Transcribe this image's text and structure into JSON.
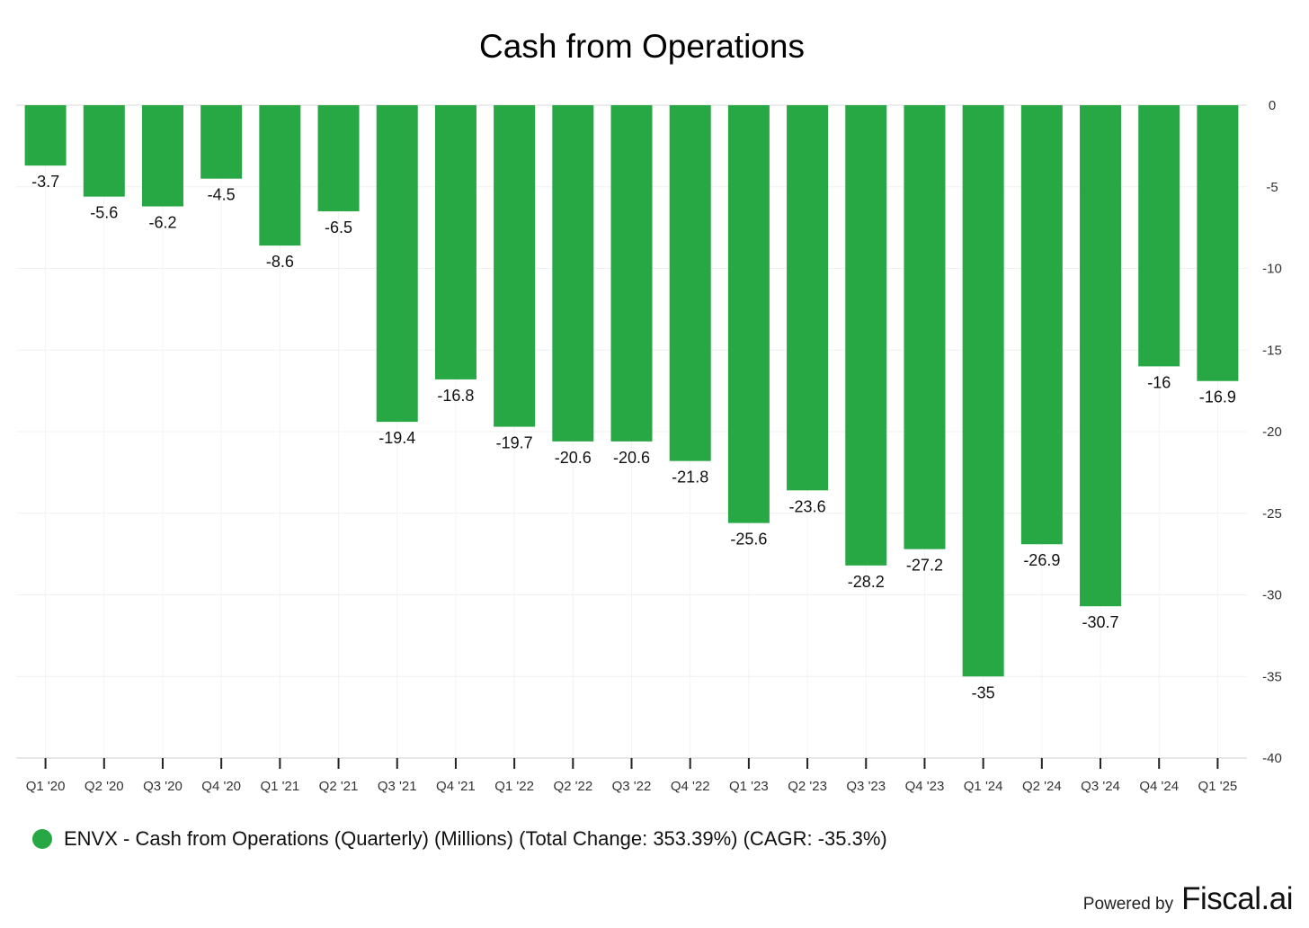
{
  "chart_data": {
    "type": "bar",
    "title": "Cash from Operations",
    "categories": [
      "Q1 '20",
      "Q2 '20",
      "Q3 '20",
      "Q4 '20",
      "Q1 '21",
      "Q2 '21",
      "Q3 '21",
      "Q4 '21",
      "Q1 '22",
      "Q2 '22",
      "Q3 '22",
      "Q4 '22",
      "Q1 '23",
      "Q2 '23",
      "Q3 '23",
      "Q4 '23",
      "Q1 '24",
      "Q2 '24",
      "Q3 '24",
      "Q4 '24",
      "Q1 '25"
    ],
    "series": [
      {
        "name": "ENVX - Cash from Operations (Quarterly) (Millions) (Total Change: 353.39%) (CAGR: -35.3%)",
        "values": [
          -3.7,
          -5.6,
          -6.2,
          -4.5,
          -8.6,
          -6.5,
          -19.4,
          -16.8,
          -19.7,
          -20.6,
          -20.6,
          -21.8,
          -25.6,
          -23.6,
          -28.2,
          -27.2,
          -35,
          -26.9,
          -30.7,
          -16,
          -16.9
        ],
        "color": "#27a844"
      }
    ],
    "data_labels": [
      "-3.7",
      "-5.6",
      "-6.2",
      "-4.5",
      "-8.6",
      "-6.5",
      "-19.4",
      "-16.8",
      "-19.7",
      "-20.6",
      "-20.6",
      "-21.8",
      "-25.6",
      "-23.6",
      "-28.2",
      "-27.2",
      "-35",
      "-26.9",
      "-30.7",
      "-16",
      "-16.9"
    ],
    "ylim": [
      -40,
      0
    ],
    "yticks": [
      0,
      -5,
      -10,
      -15,
      -20,
      -25,
      -30,
      -35,
      -40
    ],
    "y_axis_side": "right",
    "grid": true,
    "legend_position": "bottom-left",
    "xlabel": "",
    "ylabel": ""
  },
  "legend": {
    "label": "ENVX - Cash from Operations (Quarterly) (Millions) (Total Change: 353.39%) (CAGR: -35.3%)",
    "color": "#27a844"
  },
  "footer": {
    "powered_by": "Powered by",
    "brand": "Fiscal.ai"
  }
}
